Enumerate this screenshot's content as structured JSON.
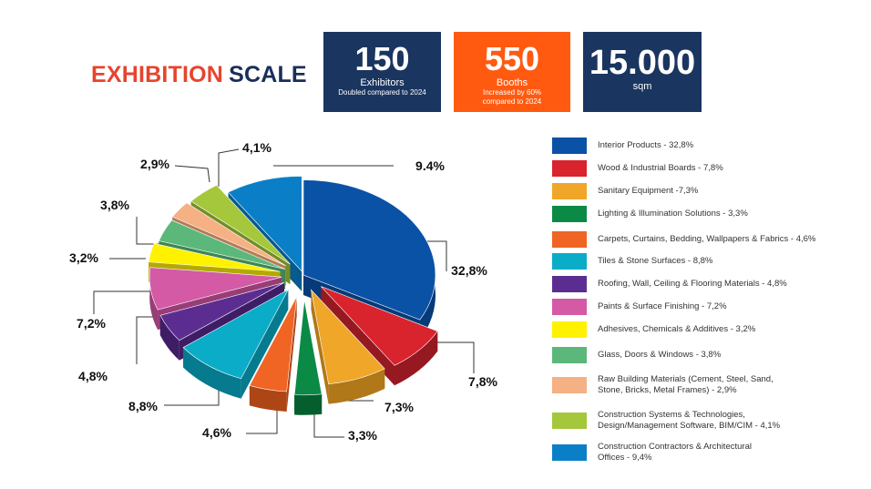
{
  "header": {
    "title_part1": "EXHIBITION",
    "title_part2": "SCALE"
  },
  "stats": [
    {
      "value": "150",
      "label": "Exhibitors",
      "sub": "Doubled compared to 2024",
      "color": "#1a3560"
    },
    {
      "value": "550",
      "label": "Booths",
      "sub": "Increased by 60%",
      "sub2": "compared to 2024",
      "color": "#ff5a10"
    },
    {
      "value": "15.000",
      "label": "sqm",
      "color": "#1a3560"
    }
  ],
  "chart_data": {
    "type": "pie",
    "title": "EXHIBITION SCALE",
    "slices": [
      {
        "name": "Interior Products",
        "value": 32.8,
        "label": "32,8%",
        "legend": "Interior Products - 32,8%",
        "color": "#0a52a6",
        "side": "#063a78"
      },
      {
        "name": "Wood & Industrial Boards",
        "value": 7.8,
        "label": "7,8%",
        "legend": "Wood & Industrial Boards - 7,8%",
        "color": "#d9232d",
        "side": "#961820"
      },
      {
        "name": "Sanitary Equipment",
        "value": 7.3,
        "label": "7,3%",
        "legend": "Sanitary Equipment -7,3%",
        "color": "#f0a629",
        "side": "#b07818"
      },
      {
        "name": "Lighting & Illumination Solutions",
        "value": 3.3,
        "label": "3,3%",
        "legend": "Lighting & Illumination Solutions - 3,3%",
        "color": "#0a8a45",
        "side": "#055e2e"
      },
      {
        "name": "Carpets, Curtains, Bedding, Wallpapers & Fabrics",
        "value": 4.6,
        "label": "4,6%",
        "legend": "Carpets, Curtains, Bedding, Wallpapers & Fabrics - 4,6%",
        "color": "#f06424",
        "side": "#ad4515"
      },
      {
        "name": "Tiles & Stone Surfaces",
        "value": 8.8,
        "label": "8,8%",
        "legend": "Tiles & Stone Surfaces - 8,8%",
        "color": "#0aacc8",
        "side": "#067a8e"
      },
      {
        "name": "Roofing, Wall, Ceiling & Flooring Materials",
        "value": 4.8,
        "label": "4,8%",
        "legend": "Roofing, Wall, Ceiling & Flooring Materials - 4,8%",
        "color": "#5c2d91",
        "side": "#3f1d66"
      },
      {
        "name": "Paints & Surface Finishing",
        "value": 7.2,
        "label": "7,2%",
        "legend": "Paints & Surface Finishing - 7,2%",
        "color": "#d45aa6",
        "side": "#983d76"
      },
      {
        "name": "Adhesives, Chemicals & Additives",
        "value": 3.2,
        "label": "3,2%",
        "legend": "Adhesives, Chemicals & Additives - 3,2%",
        "color": "#fff200",
        "side": "#b3a900"
      },
      {
        "name": "Glass, Doors & Windows",
        "value": 3.8,
        "label": "3,8%",
        "legend": "Glass, Doors & Windows - 3,8%",
        "color": "#5cb87a",
        "side": "#3d8556"
      },
      {
        "name": "Raw Building Materials",
        "value": 2.9,
        "label": "2,9%",
        "legend": "Raw Building Materials (Cement, Steel, Sand, Stone, Bricks, Metal Frames) - 2,9%",
        "legend_lines": [
          "Raw Building Materials (Cement, Steel, Sand,",
          "Stone, Bricks, Metal Frames) - 2,9%"
        ],
        "color": "#f5b084",
        "side": "#b47c58"
      },
      {
        "name": "Construction Systems & Technologies",
        "value": 4.1,
        "label": "4,1%",
        "legend": "Construction Systems & Technologies, Design/Management Software, BIM/CIM - 4,1%",
        "legend_lines": [
          "Construction Systems & Technologies,",
          "Design/Management Software, BIM/CIM - 4,1%"
        ],
        "color": "#a5c73b",
        "side": "#738d26"
      },
      {
        "name": "Construction Contractors & Architectural Offices",
        "value": 9.4,
        "label": "9.4%",
        "legend": "Construction Contractors & Architectural Offices - 9,4%",
        "legend_lines": [
          "Construction Contractors & Architectural",
          "Offices - 9,4%"
        ],
        "color": "#0a7fc7",
        "side": "#065a8e"
      }
    ]
  }
}
